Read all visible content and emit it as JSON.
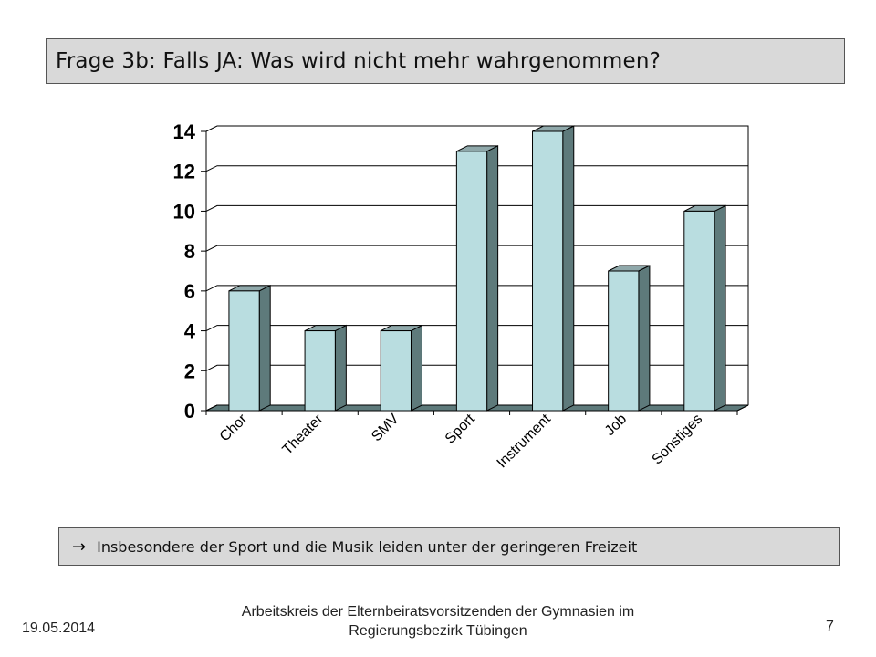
{
  "title": "Frage 3b: Falls JA: Was wird nicht mehr wahrgenommen?",
  "note": {
    "arrow": "→",
    "text": "Insbesondere der Sport und die Musik leiden unter der geringeren Freizeit"
  },
  "footer": {
    "date": "19.05.2014",
    "line1": "Arbeitskreis der Elternbeiratsvorsitzenden der Gymnasien im",
    "line2": "Regierungsbezirk Tübingen",
    "page": "7"
  },
  "chart_data": {
    "type": "bar",
    "categories": [
      "Chor",
      "Theater",
      "SMV",
      "Sport",
      "Instrument",
      "Job",
      "Sonstiges"
    ],
    "values": [
      6,
      4,
      4,
      13,
      14,
      7,
      10
    ],
    "yticks": [
      0,
      2,
      4,
      6,
      8,
      10,
      12,
      14
    ],
    "ylim": [
      0,
      14
    ],
    "grid": true,
    "legend": "none",
    "colors": {
      "bar_front": "#b9dde0",
      "bar_side": "#5e7a7b",
      "bar_top": "#8fa8aa",
      "outline": "#000000"
    }
  }
}
